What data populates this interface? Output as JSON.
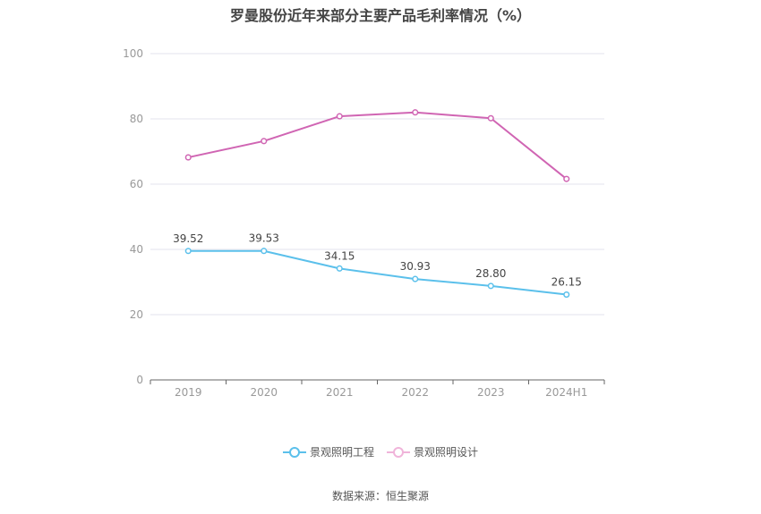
{
  "chart_data": {
    "type": "line",
    "title": "罗曼股份近年来部分主要产品毛利率情况（%）",
    "categories": [
      "2019",
      "2020",
      "2021",
      "2022",
      "2023",
      "2024H1"
    ],
    "ylim": [
      0,
      100
    ],
    "yticks": [
      0,
      20,
      40,
      60,
      80,
      100
    ],
    "grid": true,
    "legend_position": "bottom",
    "series": [
      {
        "name": "景观照明工程",
        "color": "#5bc0eb",
        "values": [
          39.52,
          39.53,
          34.15,
          30.93,
          28.8,
          26.15
        ],
        "labels": [
          "39.52",
          "39.53",
          "34.15",
          "30.93",
          "28.80",
          "26.15"
        ],
        "show_labels": true
      },
      {
        "name": "景观照明设计",
        "color": "#d065b3",
        "values": [
          68.2,
          73.2,
          80.8,
          82.0,
          80.2,
          61.6
        ],
        "show_labels": false
      }
    ],
    "source": "数据来源：恒生聚源"
  }
}
